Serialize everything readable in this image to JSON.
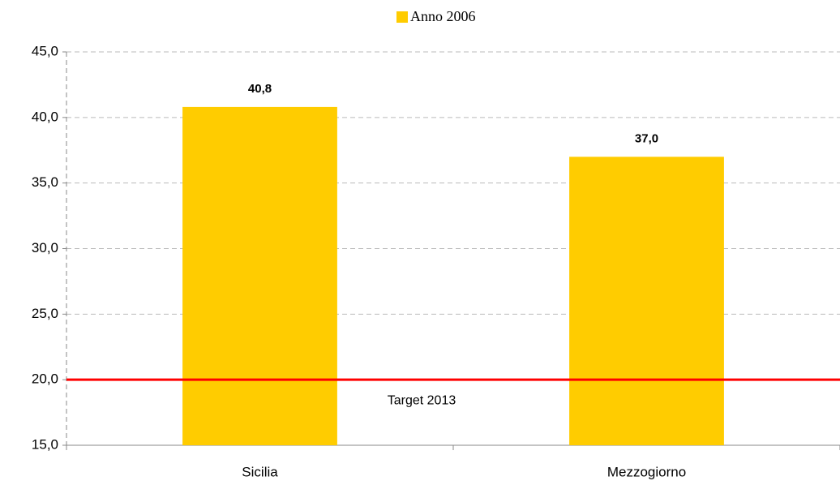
{
  "chart_data": {
    "type": "bar",
    "legend": "Anno 2006",
    "categories": [
      "Sicilia",
      "Mezzogiorno"
    ],
    "series": [
      {
        "name": "Anno 2006",
        "color": "#ffcc00",
        "values": [
          40.8,
          37.0
        ],
        "value_labels": [
          "40,8",
          "37,0"
        ]
      }
    ],
    "ylim": [
      15,
      45
    ],
    "yticks": [
      {
        "value": 15,
        "label": "15,0"
      },
      {
        "value": 20,
        "label": "20,0"
      },
      {
        "value": 25,
        "label": "25,0"
      },
      {
        "value": 30,
        "label": "30,0"
      },
      {
        "value": 35,
        "label": "35,0"
      },
      {
        "value": 40,
        "label": "40,0"
      },
      {
        "value": 45,
        "label": "45,0"
      }
    ],
    "grid": true,
    "target": {
      "value": 20,
      "label": "Target 2013",
      "color": "#ff0000"
    }
  }
}
